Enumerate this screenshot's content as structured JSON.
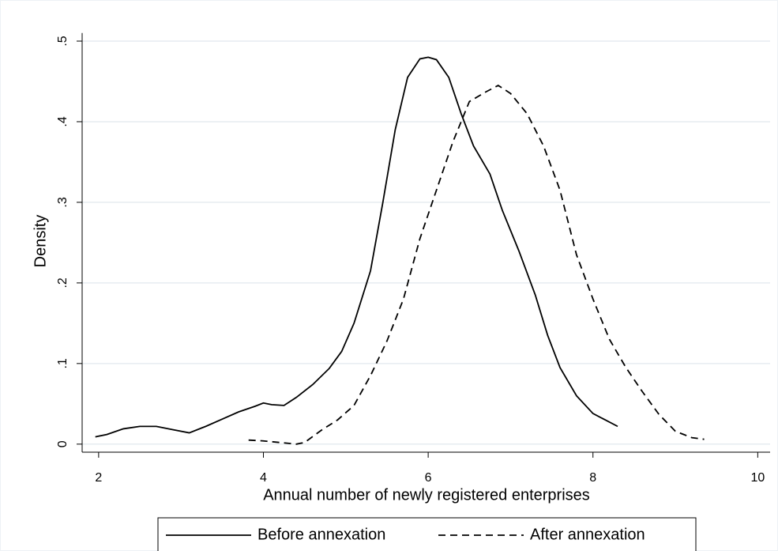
{
  "chart_data": {
    "type": "line",
    "xlabel": "Annual number of newly registered enterprises",
    "ylabel": "Density",
    "xlim": [
      1.8,
      10.15
    ],
    "xticks": [
      2,
      4,
      6,
      8,
      10
    ],
    "ylim": [
      -0.01,
      0.51
    ],
    "yticks": [
      0,
      {
        "value": 0.1,
        "label": ".1"
      },
      {
        "value": 0.2,
        "label": ".2"
      },
      {
        "value": 0.3,
        "label": ".3"
      },
      {
        "value": 0.4,
        "label": ".4"
      },
      {
        "value": 0.5,
        "label": ".5"
      }
    ],
    "grid": true,
    "legend": "bottom",
    "series": [
      {
        "name": "Before annexation",
        "color": "#000000",
        "line_style": "solid",
        "x": [
          1.96,
          2.1,
          2.3,
          2.5,
          2.7,
          2.9,
          3.1,
          3.3,
          3.5,
          3.7,
          3.9,
          4.0,
          4.1,
          4.25,
          4.4,
          4.6,
          4.8,
          4.95,
          5.1,
          5.3,
          5.45,
          5.6,
          5.75,
          5.9,
          6.0,
          6.1,
          6.25,
          6.4,
          6.55,
          6.75,
          6.9,
          7.1,
          7.3,
          7.45,
          7.6,
          7.8,
          8.0,
          8.15,
          8.3
        ],
        "values": [
          0.009,
          0.012,
          0.019,
          0.022,
          0.022,
          0.018,
          0.014,
          0.022,
          0.031,
          0.04,
          0.047,
          0.051,
          0.049,
          0.048,
          0.058,
          0.074,
          0.094,
          0.115,
          0.15,
          0.215,
          0.3,
          0.39,
          0.455,
          0.478,
          0.48,
          0.477,
          0.455,
          0.41,
          0.37,
          0.335,
          0.29,
          0.24,
          0.185,
          0.135,
          0.095,
          0.06,
          0.038,
          0.03,
          0.022
        ]
      },
      {
        "name": "After annexation",
        "color": "#000000",
        "line_style": "dashed",
        "x": [
          3.82,
          4.0,
          4.2,
          4.4,
          4.5,
          4.7,
          4.9,
          5.1,
          5.3,
          5.5,
          5.7,
          5.9,
          6.1,
          6.3,
          6.5,
          6.7,
          6.85,
          7.0,
          7.2,
          7.4,
          7.6,
          7.8,
          8.0,
          8.2,
          8.4,
          8.6,
          8.8,
          9.0,
          9.2,
          9.35
        ],
        "values": [
          0.005,
          0.004,
          0.002,
          0.0,
          0.002,
          0.017,
          0.03,
          0.048,
          0.085,
          0.128,
          0.18,
          0.255,
          0.315,
          0.375,
          0.425,
          0.437,
          0.445,
          0.435,
          0.41,
          0.37,
          0.315,
          0.235,
          0.18,
          0.13,
          0.095,
          0.065,
          0.037,
          0.016,
          0.008,
          0.006
        ]
      }
    ]
  }
}
